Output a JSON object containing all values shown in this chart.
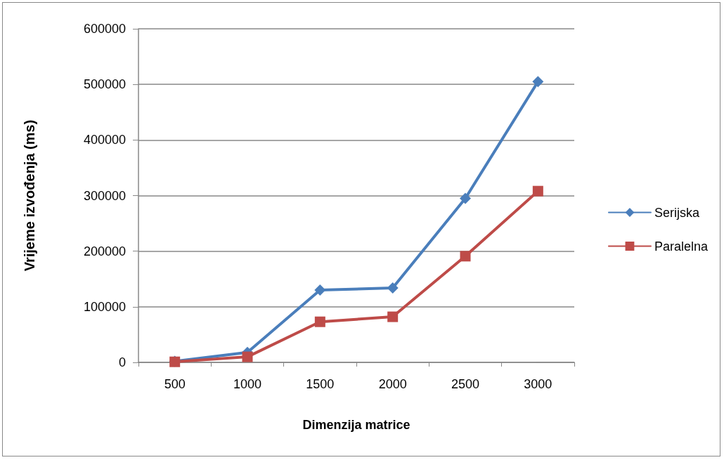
{
  "chart_data": {
    "type": "line",
    "xlabel": "Dimenzija matrice",
    "ylabel": "Vrijeme izvođenja (ms)",
    "categories": [
      "500",
      "1000",
      "1500",
      "2000",
      "2500",
      "3000"
    ],
    "series": [
      {
        "name": "Serijska",
        "color": "#4a7ebb",
        "marker": "diamond",
        "values": [
          2000,
          18000,
          130000,
          134000,
          295000,
          505000
        ]
      },
      {
        "name": "Paralelna",
        "color": "#be4b48",
        "marker": "square",
        "values": [
          1000,
          10000,
          73000,
          82000,
          191000,
          308000
        ]
      }
    ],
    "ylim": [
      0,
      600000
    ],
    "yticks": [
      0,
      100000,
      200000,
      300000,
      400000,
      500000,
      600000
    ],
    "grid": "y",
    "legend": "right",
    "line_style": "solid"
  }
}
